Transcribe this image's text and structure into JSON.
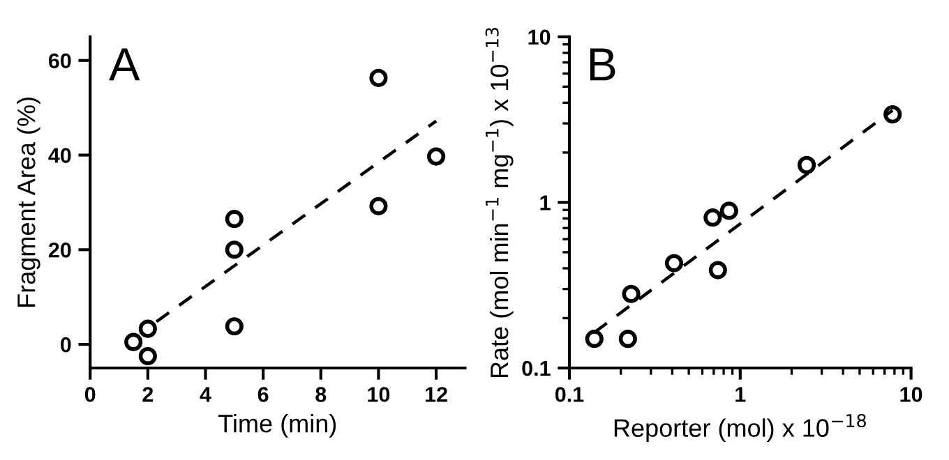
{
  "chart_data": [
    {
      "type": "scatter",
      "xlabel": "Time (min)",
      "ylabel": "Fragment Area (%)",
      "annotations": [
        "A"
      ],
      "xlim": [
        0,
        13
      ],
      "ylim": [
        -5,
        65
      ],
      "xticks": [
        0,
        2,
        4,
        6,
        8,
        10,
        12
      ],
      "yticks": [
        0,
        20,
        40,
        60
      ],
      "grid": false,
      "marker": "circle",
      "series": [
        {
          "color": "#000000",
          "x": [
            1.5,
            2,
            2,
            5,
            5,
            5,
            10,
            10,
            12
          ],
          "values": [
            0.5,
            3.3,
            -2.5,
            26.5,
            20,
            3.8,
            56.3,
            29.2,
            39.7
          ]
        },
        {
          "type": "line",
          "color": "#000000",
          "line_style": "dashed",
          "marker": "none",
          "x": [
            2.3,
            12
          ],
          "values": [
            4.8,
            47.2
          ]
        }
      ]
    },
    {
      "type": "scatter",
      "xlabel": "Reporter (mol) x 10$^{−18}$",
      "ylabel": "Rate (mol min$^{−1}$ mg$^{−1}$) x 10$^{−13}$",
      "annotations": [
        "B"
      ],
      "log": "xy",
      "xlim": [
        0.1,
        10
      ],
      "ylim": [
        0.1,
        10
      ],
      "xticks": [
        0.1,
        1,
        10
      ],
      "yticks": [
        0.1,
        1,
        10
      ],
      "grid": false,
      "marker": "circle",
      "series": [
        {
          "color": "#000000",
          "x": [
            0.14,
            0.22,
            0.23,
            0.41,
            0.69,
            0.86,
            0.74,
            2.45,
            7.8
          ],
          "values": [
            0.15,
            0.15,
            0.28,
            0.43,
            0.81,
            0.89,
            0.39,
            1.68,
            3.4
          ]
        },
        {
          "type": "line",
          "color": "#000000",
          "line_style": "dashed",
          "marker": "none",
          "x": [
            0.14,
            7.8
          ],
          "values": [
            0.164,
            3.6
          ]
        }
      ]
    }
  ]
}
